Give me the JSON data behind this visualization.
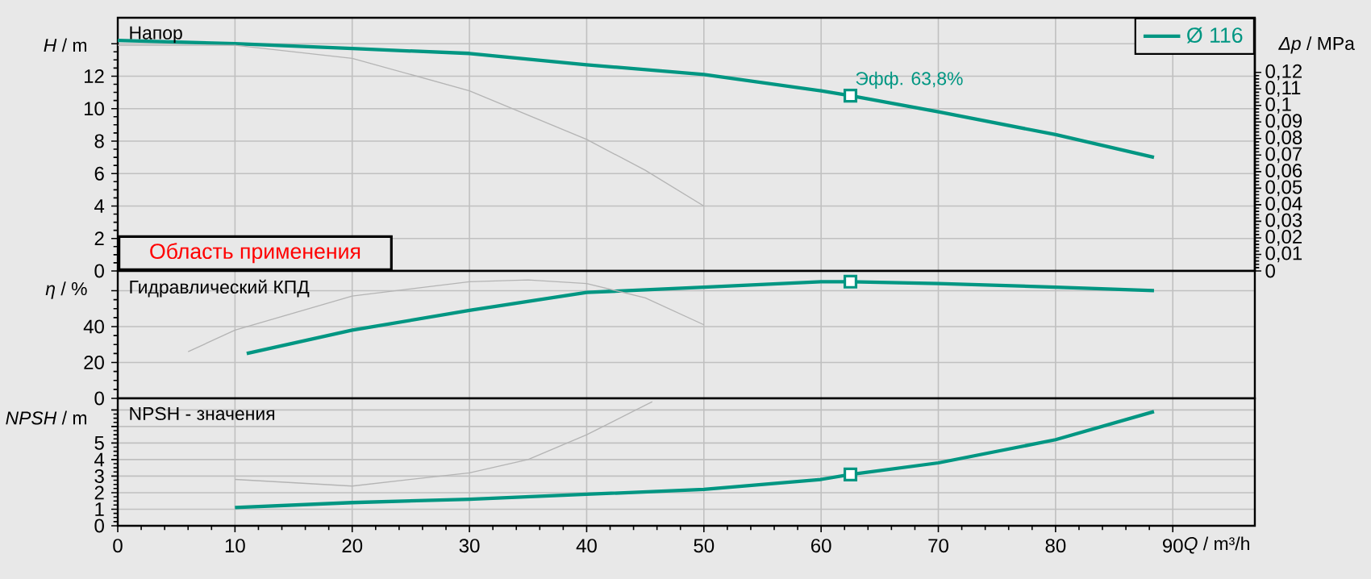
{
  "chart_data": [
    {
      "type": "line",
      "title": "Напор",
      "ylabel": "*H* / m",
      "y2label": "*Δp* / MPa",
      "xlim": [
        0,
        97
      ],
      "xticks": [
        0,
        10,
        20,
        30,
        40,
        50,
        60,
        70,
        80,
        90
      ],
      "ylim": [
        0,
        15.6
      ],
      "yticks": [
        0,
        2,
        4,
        6,
        8,
        10,
        12,
        {
          "value": 14,
          "label": null
        }
      ],
      "y2lim": [
        0,
        0.153
      ],
      "y2ticks": [
        0,
        {
          "value": 0.01,
          "label": "0,01"
        },
        {
          "value": 0.02,
          "label": "0,02"
        },
        {
          "value": 0.03,
          "label": "0,03"
        },
        {
          "value": 0.04,
          "label": "0,04"
        },
        {
          "value": 0.05,
          "label": "0,05"
        },
        {
          "value": 0.06,
          "label": "0,06"
        },
        {
          "value": 0.07,
          "label": "0,07"
        },
        {
          "value": 0.08,
          "label": "0,08"
        },
        {
          "value": 0.09,
          "label": "0,09"
        },
        {
          "value": 0.1,
          "label": "0,1"
        },
        {
          "value": 0.11,
          "label": "0,11"
        },
        {
          "value": 0.12,
          "label": "0,12"
        }
      ],
      "grid": true,
      "legend": "top right",
      "tick_labels": "y",
      "series": [
        {
          "name": "Ø 116",
          "color": "#009682",
          "x": [
            0,
            10,
            20,
            30,
            40,
            50,
            60,
            62.5,
            70,
            80,
            88.4
          ],
          "values": [
            14.2,
            14.0,
            13.7,
            13.4,
            12.7,
            12.1,
            11.1,
            10.8,
            9.8,
            8.4,
            7.0
          ]
        },
        {
          "color": "#b4b4b4",
          "x": [
            0,
            10,
            20,
            30,
            40,
            45,
            50
          ],
          "values": [
            13.9,
            13.9,
            13.1,
            11.1,
            8.1,
            6.2,
            4.0
          ]
        },
        {
          "type": "scatter",
          "marker": "square",
          "color": "#009682",
          "x": [
            62.5
          ],
          "values": [
            10.8
          ]
        }
      ],
      "annotations": [
        {
          "text": "Эфф.  63,8%",
          "x": 62.5,
          "y": 10.8
        },
        "Область применения"
      ]
    },
    {
      "type": "line",
      "title": "Гидравлический КПД",
      "ylabel": "*η* / %",
      "xlim": [
        0,
        97
      ],
      "xticks": [
        0,
        10,
        20,
        30,
        40,
        50,
        60,
        70,
        80,
        90
      ],
      "ylim": [
        0,
        71
      ],
      "yticks": [
        0,
        20,
        40,
        {
          "value": 60,
          "label": null
        }
      ],
      "grid": true,
      "tick_labels": "y",
      "series": [
        {
          "color": "#009682",
          "x": [
            11,
            20,
            30,
            40,
            50,
            60,
            62.5,
            70,
            80,
            88.4
          ],
          "values": [
            25,
            38,
            49,
            59,
            62,
            65,
            65,
            64,
            62,
            60
          ]
        },
        {
          "color": "#b4b4b4",
          "x": [
            6,
            10,
            20,
            30,
            35,
            40,
            45,
            50
          ],
          "values": [
            26,
            38,
            57,
            65,
            66,
            64,
            56,
            41
          ]
        },
        {
          "type": "scatter",
          "marker": "square",
          "color": "#009682",
          "x": [
            62.5
          ],
          "values": [
            65
          ]
        }
      ]
    },
    {
      "type": "line",
      "title": "NPSH - значения",
      "ylabel": "*NPSH* / m",
      "xlabel": "*Q* / m³/h",
      "xlim": [
        0,
        97
      ],
      "xticks": [
        0,
        10,
        20,
        30,
        40,
        50,
        60,
        70,
        80,
        90
      ],
      "ylim": [
        0,
        7.7
      ],
      "yticks": [
        0,
        1,
        2,
        3,
        4,
        5,
        {
          "value": 6,
          "label": null
        },
        {
          "value": 7,
          "label": null
        }
      ],
      "grid": true,
      "series": [
        {
          "color": "#009682",
          "x": [
            10,
            20,
            30,
            40,
            50,
            60,
            62.5,
            70,
            80,
            88.4
          ],
          "values": [
            1.1,
            1.4,
            1.6,
            1.9,
            2.2,
            2.8,
            3.1,
            3.8,
            5.2,
            6.9
          ]
        },
        {
          "color": "#b4b4b4",
          "x": [
            10,
            20,
            30,
            35,
            40,
            45.6
          ],
          "values": [
            2.8,
            2.4,
            3.2,
            4.0,
            5.5,
            7.5
          ]
        },
        {
          "type": "scatter",
          "marker": "square",
          "color": "#009682",
          "x": [
            62.5
          ],
          "values": [
            3.1
          ]
        }
      ]
    }
  ]
}
